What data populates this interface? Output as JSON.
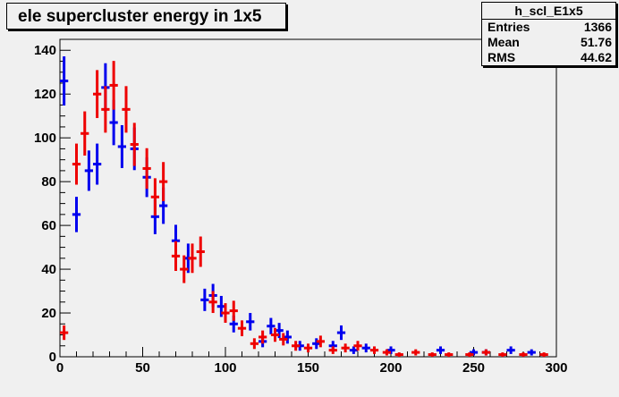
{
  "title": "ele supercluster energy in 1x5",
  "stats": {
    "name": "h_scl_E1x5",
    "rows": [
      {
        "label": "Entries",
        "value": "1366"
      },
      {
        "label": "Mean",
        "value": "51.76"
      },
      {
        "label": "RMS",
        "value": "44.62"
      }
    ]
  },
  "chart_data": {
    "type": "scatter",
    "title": "ele supercluster energy in 1x5",
    "xlabel": "",
    "ylabel": "",
    "xlim": [
      0,
      300
    ],
    "ylim": [
      0,
      145
    ],
    "x_ticks": [
      0,
      50,
      100,
      150,
      200,
      250,
      300
    ],
    "y_ticks": [
      0,
      20,
      40,
      60,
      80,
      100,
      120,
      140
    ],
    "bin_width": 5,
    "grid": false,
    "series": [
      {
        "color": "#0000ee",
        "x": [
          2.5,
          10,
          17.5,
          22.5,
          27.5,
          32.5,
          37.5,
          45,
          52.5,
          57.5,
          62.5,
          70,
          77.5,
          87.5,
          92.5,
          97.5,
          105,
          115,
          122.5,
          127.5,
          132.5,
          137.5,
          145,
          155,
          165,
          170,
          177.5,
          185,
          200,
          230,
          250,
          257.5,
          272.5,
          285
        ],
        "y": [
          126,
          65,
          85,
          88,
          123,
          107,
          96,
          95,
          82,
          64,
          69,
          53,
          45,
          26,
          28,
          23,
          15,
          16,
          7,
          14,
          12,
          9,
          5,
          6,
          5,
          11,
          3,
          4,
          3,
          3,
          2,
          2,
          3,
          2
        ]
      },
      {
        "color": "#ee0000",
        "x": [
          2.5,
          10,
          15,
          22.5,
          27.5,
          32.5,
          40,
          45,
          52.5,
          57.5,
          62.5,
          70,
          75,
          80,
          85,
          92.5,
          100,
          105,
          110,
          117.5,
          122.5,
          130,
          135,
          142.5,
          150,
          157.5,
          165,
          172.5,
          180,
          190,
          197.5,
          205,
          215,
          225,
          235,
          247.5,
          257.5,
          267.5,
          280,
          292.5
        ],
        "y": [
          11,
          88,
          102,
          120,
          113,
          124,
          113,
          97,
          86,
          73,
          80,
          46,
          40,
          45,
          48,
          25,
          20,
          21,
          13,
          6,
          9,
          10,
          8,
          5,
          4,
          7,
          3,
          4,
          5,
          3,
          2,
          1,
          2,
          1,
          1,
          1,
          2,
          1,
          1,
          1
        ]
      }
    ]
  }
}
